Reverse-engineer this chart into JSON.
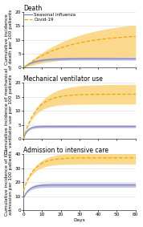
{
  "panels": [
    {
      "title": "Death",
      "ylabel": "Cumulative incidence\nof death per 100 patients",
      "ylim": [
        0,
        20
      ],
      "yticks": [
        0,
        5,
        10,
        15,
        20
      ],
      "covid_end": 12.0,
      "covid_ci_upper_end": 17.0,
      "covid_ci_lower_end": 4.0,
      "covid_rate": 0.045,
      "covid_ci_upper_rate": 0.038,
      "covid_ci_lower_rate": 0.055,
      "flu_end": 3.2,
      "flu_ci_upper_end": 3.8,
      "flu_ci_lower_end": 2.7,
      "flu_rate": 0.18,
      "flu_ci_upper_rate": 0.18,
      "flu_ci_lower_rate": 0.18,
      "flu_start": 0,
      "covid_start": 0
    },
    {
      "title": "Mechanical ventilator use",
      "ylabel": "Cumulative incidence of mechanical\nventilator use per 100 patients",
      "ylim": [
        0,
        20
      ],
      "yticks": [
        0,
        5,
        10,
        15,
        20
      ],
      "covid_end": 16.0,
      "covid_ci_upper_end": 19.5,
      "covid_ci_lower_end": 12.5,
      "covid_rate": 0.15,
      "covid_ci_upper_rate": 0.12,
      "covid_ci_lower_rate": 0.18,
      "flu_end": 4.5,
      "flu_ci_upper_end": 5.0,
      "flu_ci_lower_end": 4.0,
      "flu_rate": 0.5,
      "flu_ci_upper_rate": 0.5,
      "flu_ci_lower_rate": 0.5,
      "flu_start": 0,
      "covid_start": 0
    },
    {
      "title": "Admission to intensive care",
      "ylabel": "Cumulative incidence of ICU\nadmission per 100 patients",
      "ylim": [
        0,
        40
      ],
      "yticks": [
        0,
        10,
        20,
        30,
        40
      ],
      "covid_end": 37.5,
      "covid_ci_upper_end": 41.0,
      "covid_ci_lower_end": 33.0,
      "covid_rate": 0.18,
      "covid_ci_upper_rate": 0.16,
      "covid_ci_lower_rate": 0.2,
      "flu_end": 18.0,
      "flu_ci_upper_end": 19.5,
      "flu_ci_lower_end": 16.5,
      "flu_rate": 0.35,
      "flu_ci_upper_rate": 0.35,
      "flu_ci_lower_rate": 0.35,
      "flu_start": 8.5,
      "covid_start": 14.0
    }
  ],
  "days": 60,
  "flu_color": "#8080c0",
  "covid_color": "#f0a500",
  "covid_ci_color": "#fad580",
  "flu_ci_color": "#b0b0d8",
  "legend_labels": [
    "Seasonal influenza",
    "Covid-19"
  ],
  "xlabel": "Days",
  "title_fontsize": 5.5,
  "label_fontsize": 4.2,
  "tick_fontsize": 4.2,
  "xticks": [
    0,
    10,
    20,
    30,
    40,
    50,
    60
  ]
}
